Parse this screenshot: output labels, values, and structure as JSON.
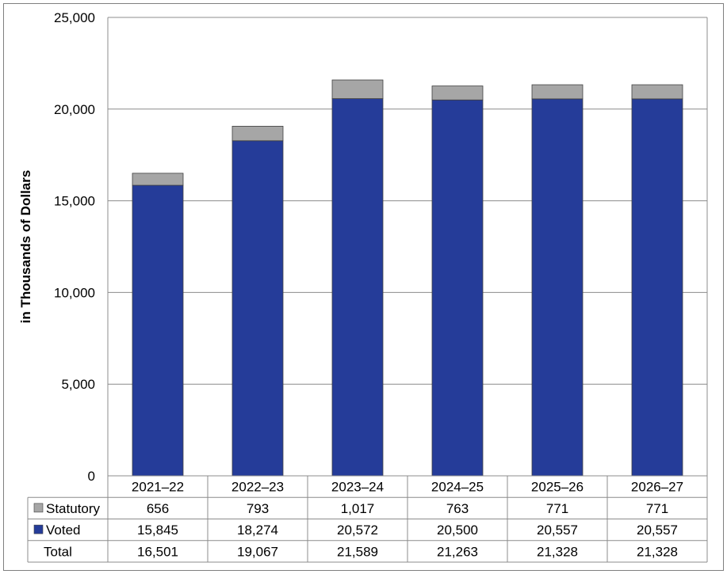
{
  "chart_data": {
    "type": "bar",
    "stacked": true,
    "ylabel": "in Thousands of Dollars",
    "ylim": [
      0,
      25000
    ],
    "yticks": [
      0,
      5000,
      10000,
      15000,
      20000,
      25000
    ],
    "ytick_labels": [
      "0",
      "5,000",
      "10,000",
      "15,000",
      "20,000",
      "25,000"
    ],
    "grid": true,
    "categories": [
      "2021–22",
      "2022–23",
      "2023–24",
      "2024–25",
      "2025–26",
      "2026–27"
    ],
    "series": [
      {
        "name": "Voted",
        "color": "#253C99",
        "values": [
          15845,
          18274,
          20572,
          20500,
          20557,
          20557
        ],
        "labels": [
          "15,845",
          "18,274",
          "20,572",
          "20,500",
          "20,557",
          "20,557"
        ]
      },
      {
        "name": "Statutory",
        "color": "#A6A6A6",
        "values": [
          656,
          793,
          1017,
          763,
          771,
          771
        ],
        "labels": [
          "656",
          "793",
          "1,017",
          "763",
          "771",
          "771"
        ]
      }
    ],
    "table_rows": [
      "Statutory",
      "Voted",
      "Total"
    ],
    "totals": {
      "name": "Total",
      "values": [
        16501,
        19067,
        21589,
        21263,
        21328,
        21328
      ],
      "labels": [
        "16,501",
        "19,067",
        "21,589",
        "21,263",
        "21,328",
        "21,328"
      ]
    }
  }
}
